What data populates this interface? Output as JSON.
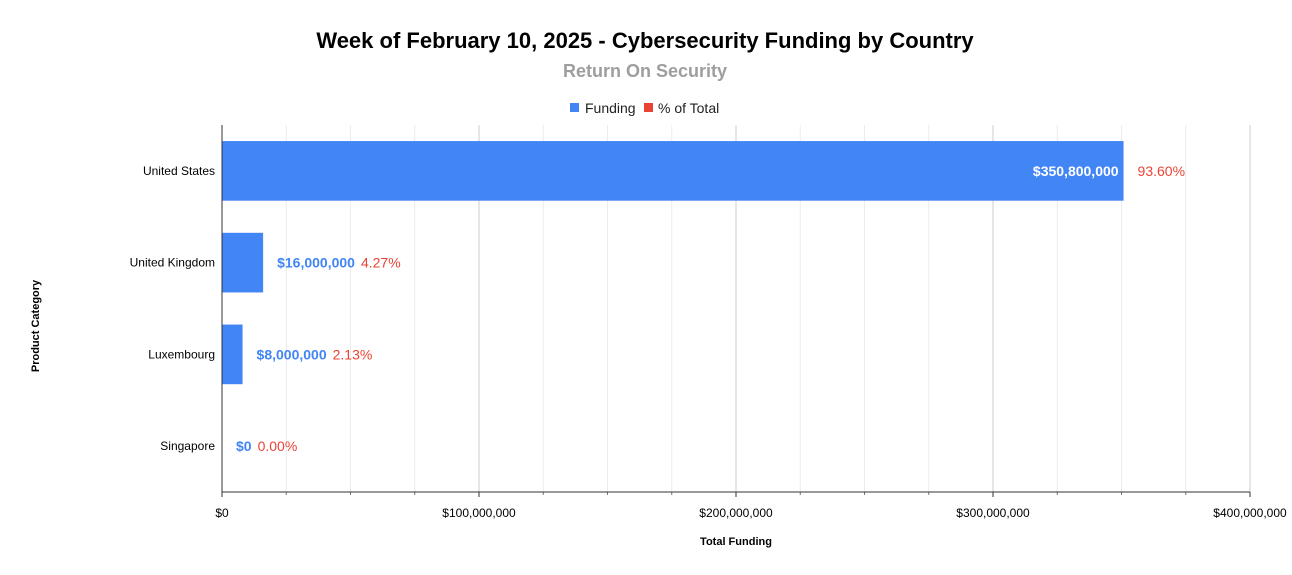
{
  "chart_data": {
    "type": "bar",
    "orientation": "horizontal",
    "title": "Week of February 10, 2025 - Cybersecurity Funding by Country",
    "subtitle": "Return On Security",
    "xlabel": "Total Funding",
    "ylabel": "Product Category",
    "xlim": [
      0,
      400000000
    ],
    "x_ticks": [
      0,
      100000000,
      200000000,
      300000000,
      400000000
    ],
    "x_tick_labels": [
      "$0",
      "$100,000,000",
      "$200,000,000",
      "$300,000,000",
      "$400,000,000"
    ],
    "grid": true,
    "legend": {
      "position": "top",
      "entries": [
        {
          "name": "Funding",
          "color": "#4285f4"
        },
        {
          "name": "% of Total",
          "color": "#ea4335"
        }
      ]
    },
    "categories": [
      "United States",
      "United Kingdom",
      "Luxembourg",
      "Singapore"
    ],
    "series": [
      {
        "name": "Funding",
        "color": "#4285f4",
        "values": [
          350800000,
          16000000,
          8000000,
          0
        ],
        "labels": [
          "$350,800,000",
          "$16,000,000",
          "$8,000,000",
          "$0"
        ]
      },
      {
        "name": "% of Total",
        "color": "#ea4335",
        "values": [
          93.6,
          4.27,
          2.13,
          0.0
        ],
        "labels": [
          "93.60%",
          "4.27%",
          "2.13%",
          "0.00%"
        ]
      }
    ]
  }
}
